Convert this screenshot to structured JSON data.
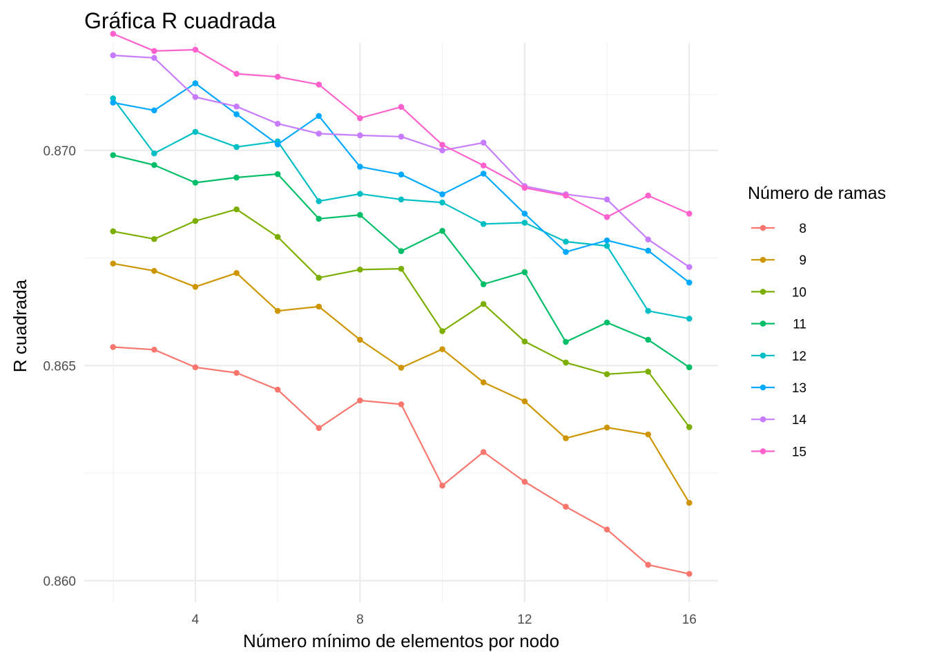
{
  "chart_data": {
    "type": "line",
    "title": "Gráfica R cuadrada",
    "xlabel": "Número mínimo de elementos por nodo",
    "ylabel": "R cuadrada",
    "x": [
      2,
      3,
      4,
      5,
      6,
      7,
      8,
      9,
      10,
      11,
      12,
      13,
      14,
      15,
      16
    ],
    "xlim": [
      1.3,
      16.7
    ],
    "ylim": [
      0.8595,
      0.8725
    ],
    "x_ticks": [
      4,
      8,
      12,
      16
    ],
    "y_ticks": [
      0.86,
      0.865,
      0.87
    ],
    "x_tick_labels": [
      "4",
      "8",
      "12",
      "16"
    ],
    "y_tick_labels": [
      "0.860",
      "0.865",
      "0.870"
    ],
    "grid": true,
    "legend": {
      "title": "Número de ramas",
      "position": "right"
    },
    "series": [
      {
        "name": "8",
        "color": "#F8766D",
        "values": [
          0.86543,
          0.86537,
          0.86496,
          0.86483,
          0.86444,
          0.86355,
          0.86419,
          0.8641,
          0.86221,
          0.86299,
          0.8623,
          0.86172,
          0.86119,
          0.86037,
          0.86016
        ]
      },
      {
        "name": "9",
        "color": "#CD9600",
        "values": [
          0.86737,
          0.8672,
          0.86683,
          0.86715,
          0.86627,
          0.86637,
          0.8656,
          0.86495,
          0.86538,
          0.86461,
          0.86417,
          0.86331,
          0.86356,
          0.8634,
          0.86181
        ]
      },
      {
        "name": "10",
        "color": "#7CAE00",
        "values": [
          0.86812,
          0.86794,
          0.86836,
          0.86863,
          0.86799,
          0.86704,
          0.86723,
          0.86725,
          0.8658,
          0.86643,
          0.86556,
          0.86507,
          0.8648,
          0.86486,
          0.86357
        ]
      },
      {
        "name": "11",
        "color": "#00BE67",
        "values": [
          0.86989,
          0.86966,
          0.86925,
          0.86937,
          0.86945,
          0.86841,
          0.8685,
          0.86766,
          0.86813,
          0.86689,
          0.86717,
          0.86555,
          0.866,
          0.8656,
          0.86496
        ]
      },
      {
        "name": "12",
        "color": "#00BFC4",
        "values": [
          0.87121,
          0.86993,
          0.87043,
          0.87008,
          0.87021,
          0.86882,
          0.86899,
          0.86886,
          0.86879,
          0.86829,
          0.86832,
          0.86788,
          0.86778,
          0.86627,
          0.86609
        ]
      },
      {
        "name": "13",
        "color": "#00A9FF",
        "values": [
          0.87111,
          0.87093,
          0.87156,
          0.87084,
          0.87014,
          0.8708,
          0.86962,
          0.86944,
          0.86898,
          0.86946,
          0.86853,
          0.86764,
          0.86791,
          0.86767,
          0.86693
        ]
      },
      {
        "name": "14",
        "color": "#C77CFF",
        "values": [
          0.87221,
          0.87215,
          0.87124,
          0.87102,
          0.87062,
          0.87039,
          0.87035,
          0.87032,
          0.87,
          0.87018,
          0.86917,
          0.86898,
          0.86886,
          0.86793,
          0.86729
        ]
      },
      {
        "name": "15",
        "color": "#FF61CC",
        "values": [
          0.87271,
          0.87231,
          0.87234,
          0.87178,
          0.87171,
          0.87153,
          0.87075,
          0.87101,
          0.87013,
          0.86965,
          0.86913,
          0.86895,
          0.86845,
          0.86895,
          0.86853
        ]
      }
    ]
  }
}
